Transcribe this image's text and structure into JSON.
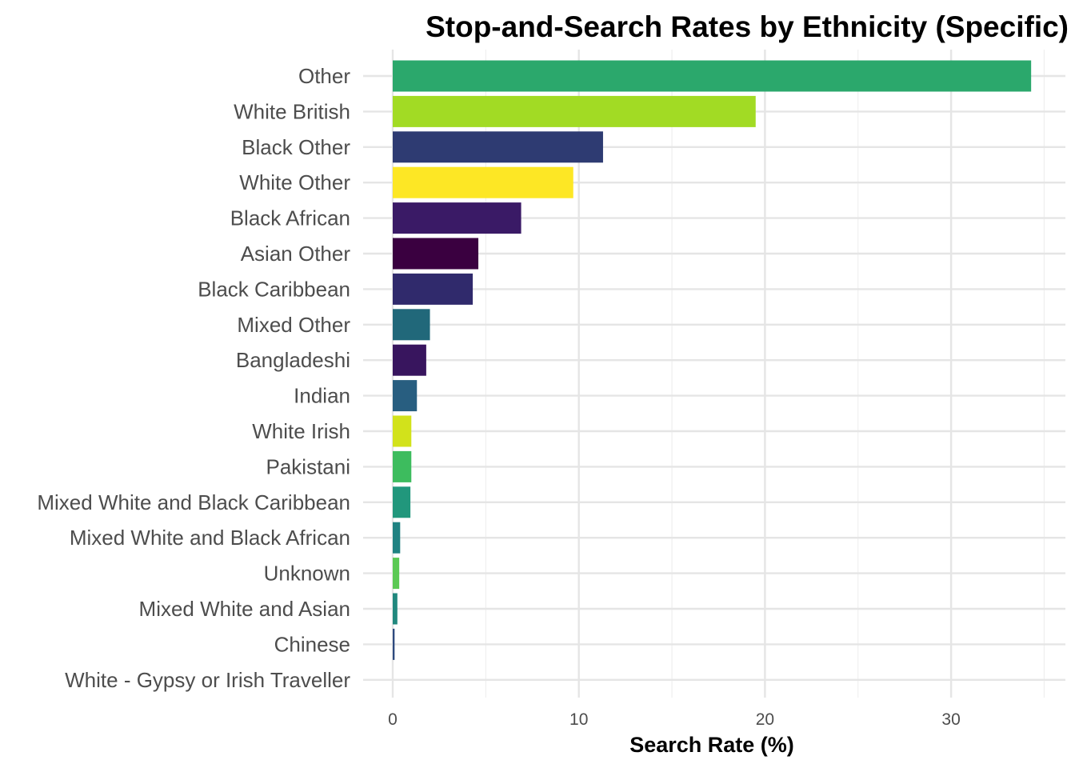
{
  "chart_data": {
    "type": "bar",
    "orientation": "horizontal",
    "title": "Stop-and-Search Rates by Ethnicity (Specific)",
    "xlabel": "Search Rate (%)",
    "ylabel": "",
    "xlim": [
      0,
      35
    ],
    "x_ticks": [
      0,
      10,
      20,
      30
    ],
    "grid": true,
    "legend": "none",
    "categories": [
      "Other",
      "White British",
      "Black Other",
      "White Other",
      "Black African",
      "Asian Other",
      "Black Caribbean",
      "Mixed Other",
      "Bangladeshi",
      "Indian",
      "White Irish",
      "Pakistani",
      "Mixed White and Black Caribbean",
      "Mixed White and Black African",
      "Unknown",
      "Mixed White and Asian",
      "Chinese",
      "White - Gypsy or Irish Traveller"
    ],
    "values": [
      34.3,
      19.5,
      11.3,
      9.7,
      6.9,
      4.6,
      4.3,
      2.0,
      1.8,
      1.3,
      1.0,
      1.0,
      0.95,
      0.4,
      0.35,
      0.25,
      0.1,
      0.0
    ],
    "colors": [
      "#2BA86C",
      "#A2DB24",
      "#2E3B72",
      "#FDE725",
      "#3A1A66",
      "#3A0040",
      "#302A6C",
      "#21687A",
      "#38155E",
      "#285E80",
      "#D2E21B",
      "#3DBC5E",
      "#21977C",
      "#208282",
      "#5BC954",
      "#21887E",
      "#2E4A7E",
      "#2C5485"
    ]
  }
}
